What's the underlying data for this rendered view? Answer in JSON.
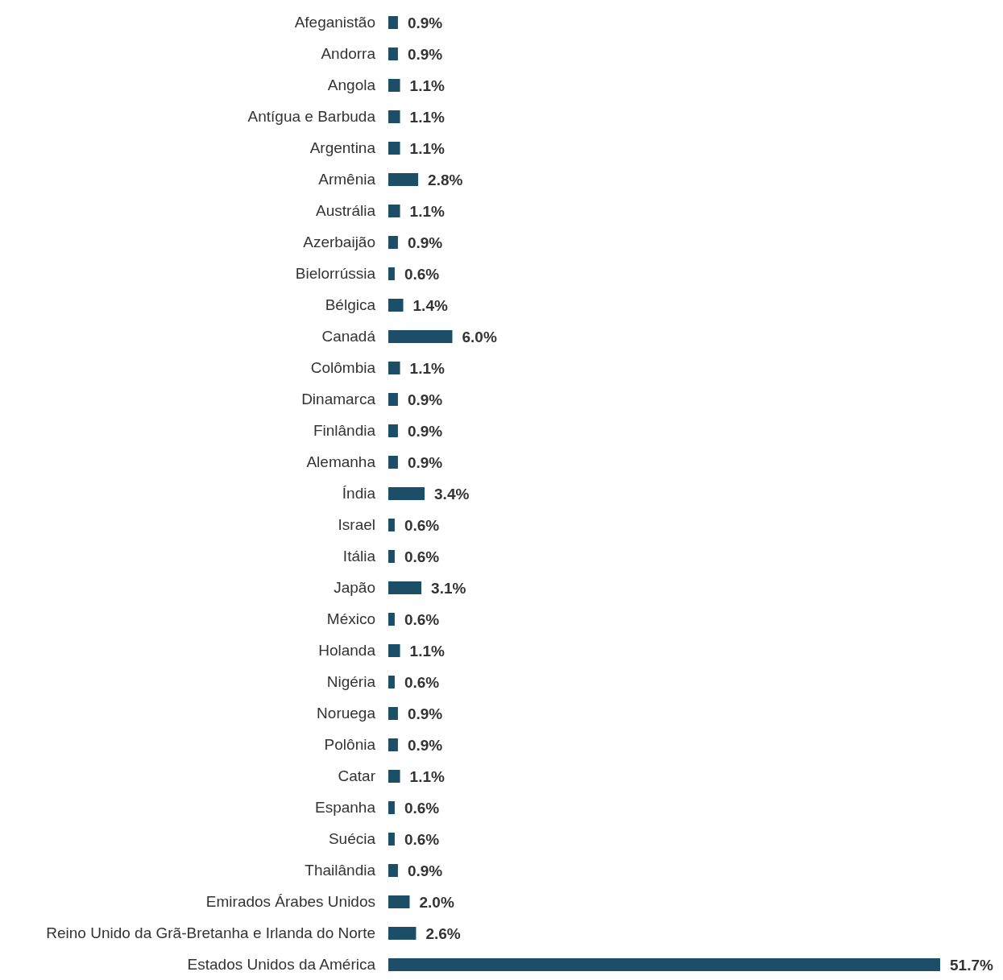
{
  "chart_data": {
    "type": "bar",
    "orientation": "horizontal",
    "categories": [
      "Afeganistão",
      "Andorra",
      "Angola",
      "Antígua e Barbuda",
      "Argentina",
      "Armênia",
      "Austrália",
      "Azerbaijão",
      "Bielorrússia",
      "Bélgica",
      "Canadá",
      "Colômbia",
      "Dinamarca",
      "Finlândia",
      "Alemanha",
      "Índia",
      "Israel",
      "Itália",
      "Japão",
      "México",
      "Holanda",
      "Nigéria",
      "Noruega",
      "Polônia",
      "Catar",
      "Espanha",
      "Suécia",
      "Thailândia",
      "Emirados Árabes Unidos",
      "Reino Unido da Grã-Bretanha e Irlanda do Norte",
      "Estados Unidos da América"
    ],
    "values": [
      0.9,
      0.9,
      1.1,
      1.1,
      1.1,
      2.8,
      1.1,
      0.9,
      0.6,
      1.4,
      6.0,
      1.1,
      0.9,
      0.9,
      0.9,
      3.4,
      0.6,
      0.6,
      3.1,
      0.6,
      1.1,
      0.6,
      0.9,
      0.9,
      1.1,
      0.6,
      0.6,
      0.9,
      2.0,
      2.6,
      51.7
    ],
    "value_labels": [
      "0.9%",
      "0.9%",
      "1.1%",
      "1.1%",
      "1.1%",
      "2.8%",
      "1.1%",
      "0.9%",
      "0.6%",
      "1.4%",
      "6.0%",
      "1.1%",
      "0.9%",
      "0.9%",
      "0.9%",
      "3.4%",
      "0.6%",
      "0.6%",
      "3.1%",
      "0.6%",
      "1.1%",
      "0.6%",
      "0.9%",
      "0.9%",
      "1.1%",
      "0.6%",
      "0.6%",
      "0.9%",
      "2.0%",
      "2.6%",
      "51.7%"
    ],
    "color": "#1d4e68",
    "xlim": [
      0,
      51.7
    ],
    "tick_labels": "y"
  }
}
